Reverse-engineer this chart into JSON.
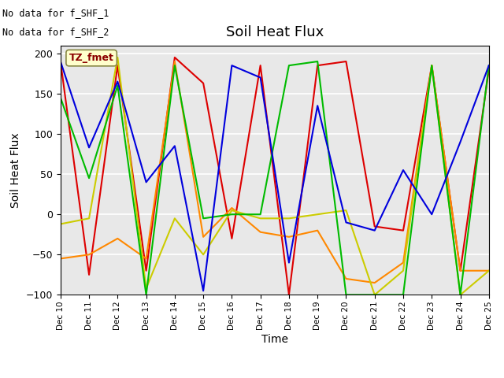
{
  "title": "Soil Heat Flux",
  "ylabel": "Soil Heat Flux",
  "xlabel": "Time",
  "annotation_line1": "No data for f_SHF_1",
  "annotation_line2": "No data for f_SHF_2",
  "legend_label": "TZ_fmet",
  "ylim": [
    -100,
    210
  ],
  "series_colors": {
    "SHF1": "#dd0000",
    "SHF2": "#ff8800",
    "SHF3": "#cccc00",
    "SHF4": "#00bb00",
    "SHF5": "#0000dd"
  },
  "x_ticks": [
    10,
    11,
    12,
    13,
    14,
    15,
    16,
    17,
    18,
    19,
    20,
    21,
    22,
    23,
    24,
    25
  ],
  "x_tick_labels": [
    "Dec 10",
    "Dec 11",
    "Dec 12",
    "Dec 13",
    "Dec 14",
    "Dec 15",
    "Dec 16",
    "Dec 17",
    "Dec 18",
    "Dec 19",
    "Dec 20",
    "Dec 21",
    "Dec 22",
    "Dec 23",
    "Dec 24",
    "Dec 25"
  ],
  "SHF1": [
    190,
    -75,
    185,
    -70,
    195,
    163,
    -30,
    185,
    -100,
    185,
    190,
    -15,
    -20,
    185,
    -70,
    180
  ],
  "SHF2": [
    -55,
    -50,
    -30,
    -55,
    190,
    -28,
    8,
    -22,
    -28,
    -20,
    -80,
    -85,
    -60,
    185,
    -70,
    -70
  ],
  "SHF3": [
    -12,
    -5,
    195,
    -92,
    -5,
    -50,
    5,
    -5,
    -5,
    0,
    5,
    -100,
    -70,
    185,
    -100,
    -70
  ],
  "SHF4": [
    145,
    45,
    160,
    -100,
    185,
    -5,
    0,
    0,
    185,
    190,
    -100,
    -100,
    -100,
    185,
    -100,
    185
  ],
  "SHF5": [
    190,
    83,
    165,
    40,
    85,
    -95,
    185,
    170,
    -60,
    135,
    -10,
    -20,
    55,
    0,
    90,
    185
  ]
}
